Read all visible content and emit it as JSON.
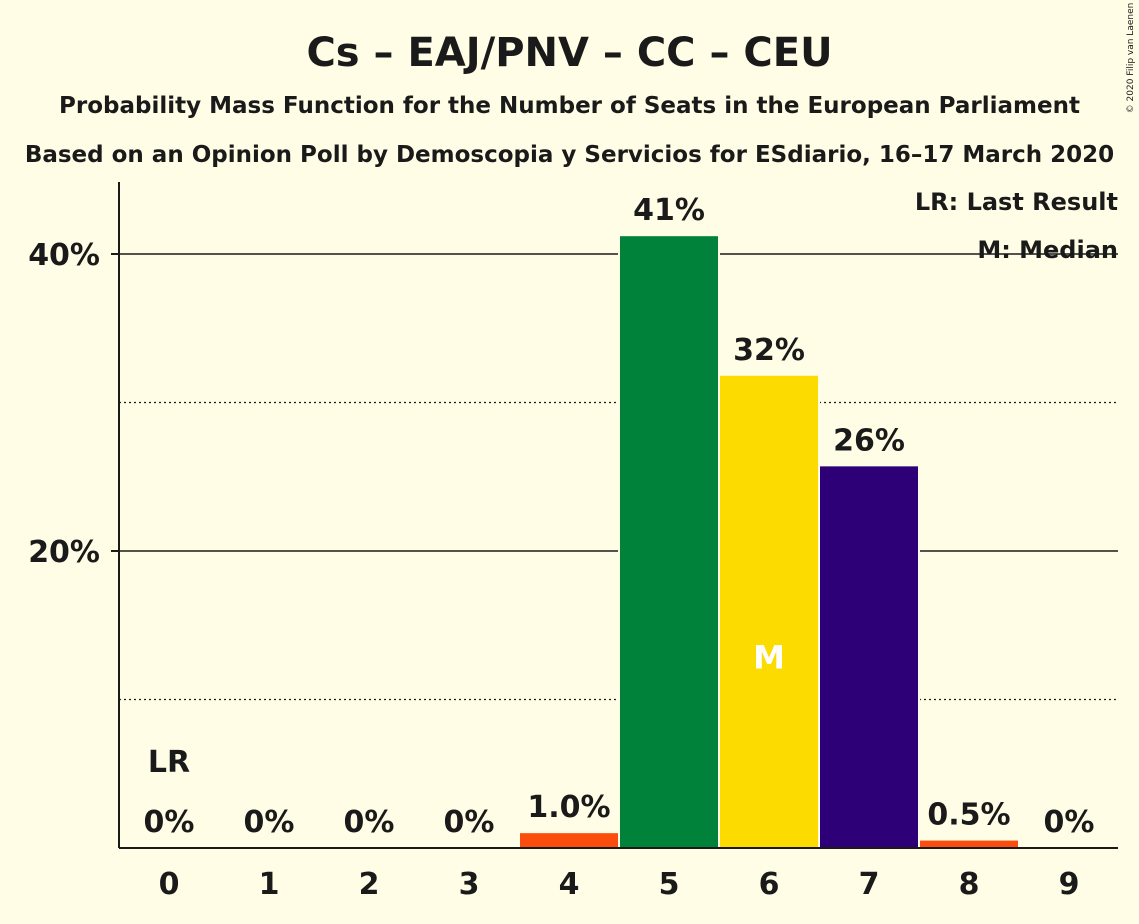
{
  "chart_data": {
    "type": "bar",
    "title": "Cs – EAJ/PNV – CC – CEU",
    "subtitle": "Probability Mass Function for the Number of Seats in the European Parliament",
    "subtitle2": "Based on an Opinion Poll by Demoscopia y Servicios for ESdiario, 16–17 March 2020",
    "copyright": "© 2020 Filip van Laenen",
    "categories": [
      "0",
      "1",
      "2",
      "3",
      "4",
      "5",
      "6",
      "7",
      "8",
      "9"
    ],
    "values": [
      0,
      0,
      0,
      0,
      1.0,
      41.2,
      31.8,
      25.7,
      0.5,
      0
    ],
    "value_labels": [
      "0%",
      "0%",
      "0%",
      "0%",
      "1.0%",
      "41%",
      "32%",
      "26%",
      "0.5%",
      "0%"
    ],
    "bar_colors": [
      "#fb4e0e",
      "#fb4e0e",
      "#fb4e0e",
      "#fb4e0e",
      "#fb4e0e",
      "#00823b",
      "#fbdb00",
      "#2d0077",
      "#fb4e0e",
      "#fb4e0e"
    ],
    "last_result_index": 0,
    "last_result_label": "LR",
    "median_index": 6,
    "median_label": "M",
    "legend": [
      "LR: Last Result",
      "M: Median"
    ],
    "legend_position": "top-right",
    "ylim": [
      0,
      45
    ],
    "y_ticks": [
      {
        "value": 20,
        "label": "20%"
      },
      {
        "value": 40,
        "label": "40%"
      }
    ],
    "y_minor_ticks": [
      10,
      30
    ],
    "xlabel": "",
    "ylabel": "",
    "grid": true
  }
}
